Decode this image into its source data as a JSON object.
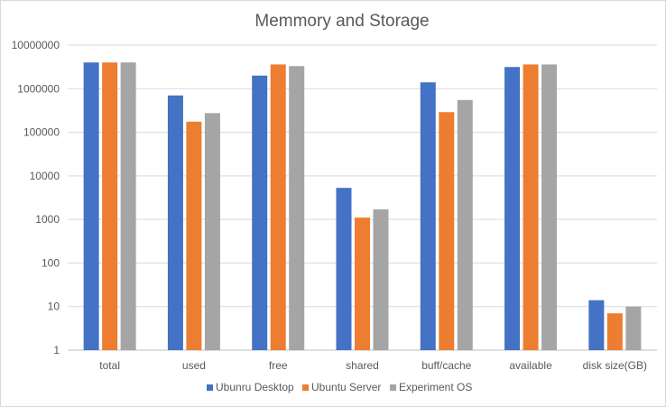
{
  "chart_data": {
    "type": "bar",
    "title": "Memmory and Storage",
    "xlabel": "",
    "ylabel": "",
    "y_scale": "log",
    "ylim": [
      1,
      10000000
    ],
    "y_ticks": [
      "1",
      "10",
      "100",
      "1000",
      "10000",
      "100000",
      "1000000",
      "10000000"
    ],
    "categories": [
      "total",
      "used",
      "free",
      "shared",
      "buff/cache",
      "available",
      "disk size(GB)"
    ],
    "legend_position": "bottom",
    "grid": true,
    "series": [
      {
        "name": "Ubunru Desktop",
        "color": "#4472c4",
        "values": [
          4000000,
          700000,
          2000000,
          5300,
          1400000,
          3150000,
          14
        ]
      },
      {
        "name": "Ubuntu Server",
        "color": "#ed7d31",
        "values": [
          4000000,
          175000,
          3600000,
          1100,
          290000,
          3600000,
          7
        ]
      },
      {
        "name": "Experiment OS",
        "color": "#a5a5a5",
        "values": [
          4000000,
          275000,
          3300000,
          1700,
          550000,
          3600000,
          10
        ]
      }
    ]
  }
}
